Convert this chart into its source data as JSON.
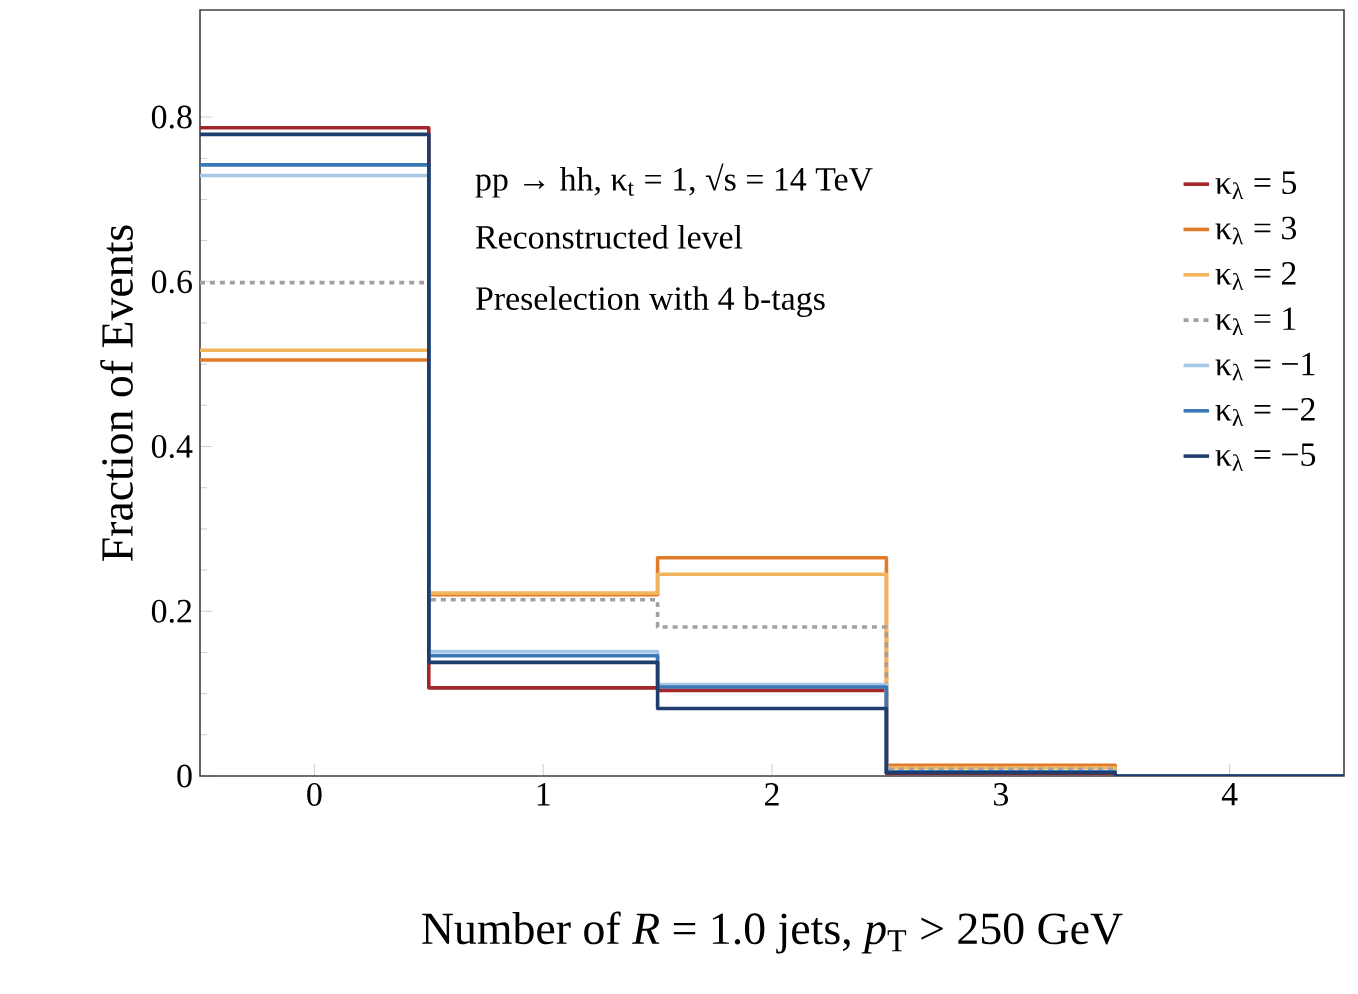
{
  "chart_data": {
    "type": "histogram",
    "xlabel": "Number of *R* = 1.0 jets, *p*$_{T}$ > 250 GeV",
    "ylabel": "Fraction of Events",
    "annotations": [
      "pp → hh, κ$_{t}$ = 1, √s = 14 TeV",
      "Reconstructed level",
      "Preselection with 4 b-tags"
    ],
    "bins": [
      -0.5,
      0.5,
      1.5,
      2.5,
      3.5,
      4.5
    ],
    "xlim": [
      -0.5,
      4.5
    ],
    "xticks": [
      0,
      1,
      2,
      3,
      4
    ],
    "ylim": [
      0,
      0.93
    ],
    "yticks": [
      0,
      0.2,
      0.4,
      0.6,
      0.8
    ],
    "legend": "top right",
    "marker": "none",
    "grid": false,
    "series": [
      {
        "name": "κ$_{λ}$ = 5",
        "color": "#a3262a",
        "line_style": "solid",
        "values": [
          0.787,
          0.107,
          0.104,
          0.003,
          0.0
        ]
      },
      {
        "name": "κ$_{λ}$ = 3",
        "color": "#e07b2a",
        "line_style": "solid",
        "values": [
          0.505,
          0.22,
          0.265,
          0.013,
          0.0
        ]
      },
      {
        "name": "κ$_{λ}$ = 2",
        "color": "#f2b45c",
        "line_style": "solid",
        "values": [
          0.517,
          0.222,
          0.245,
          0.01,
          0.0
        ]
      },
      {
        "name": "κ$_{λ}$ = 1",
        "color": "#a0a0a0",
        "line_style": "dotted",
        "values": [
          0.599,
          0.214,
          0.181,
          0.008,
          0.0
        ]
      },
      {
        "name": "κ$_{λ}$ = −1",
        "color": "#a6c8e6",
        "line_style": "solid",
        "values": [
          0.729,
          0.151,
          0.111,
          0.005,
          0.0
        ]
      },
      {
        "name": "κ$_{λ}$ = −2",
        "color": "#3a78b8",
        "line_style": "solid",
        "values": [
          0.742,
          0.146,
          0.108,
          0.005,
          0.0
        ]
      },
      {
        "name": "κ$_{λ}$ = −5",
        "color": "#1f3e6e",
        "line_style": "solid",
        "values": [
          0.779,
          0.138,
          0.082,
          0.004,
          0.0
        ]
      }
    ]
  }
}
